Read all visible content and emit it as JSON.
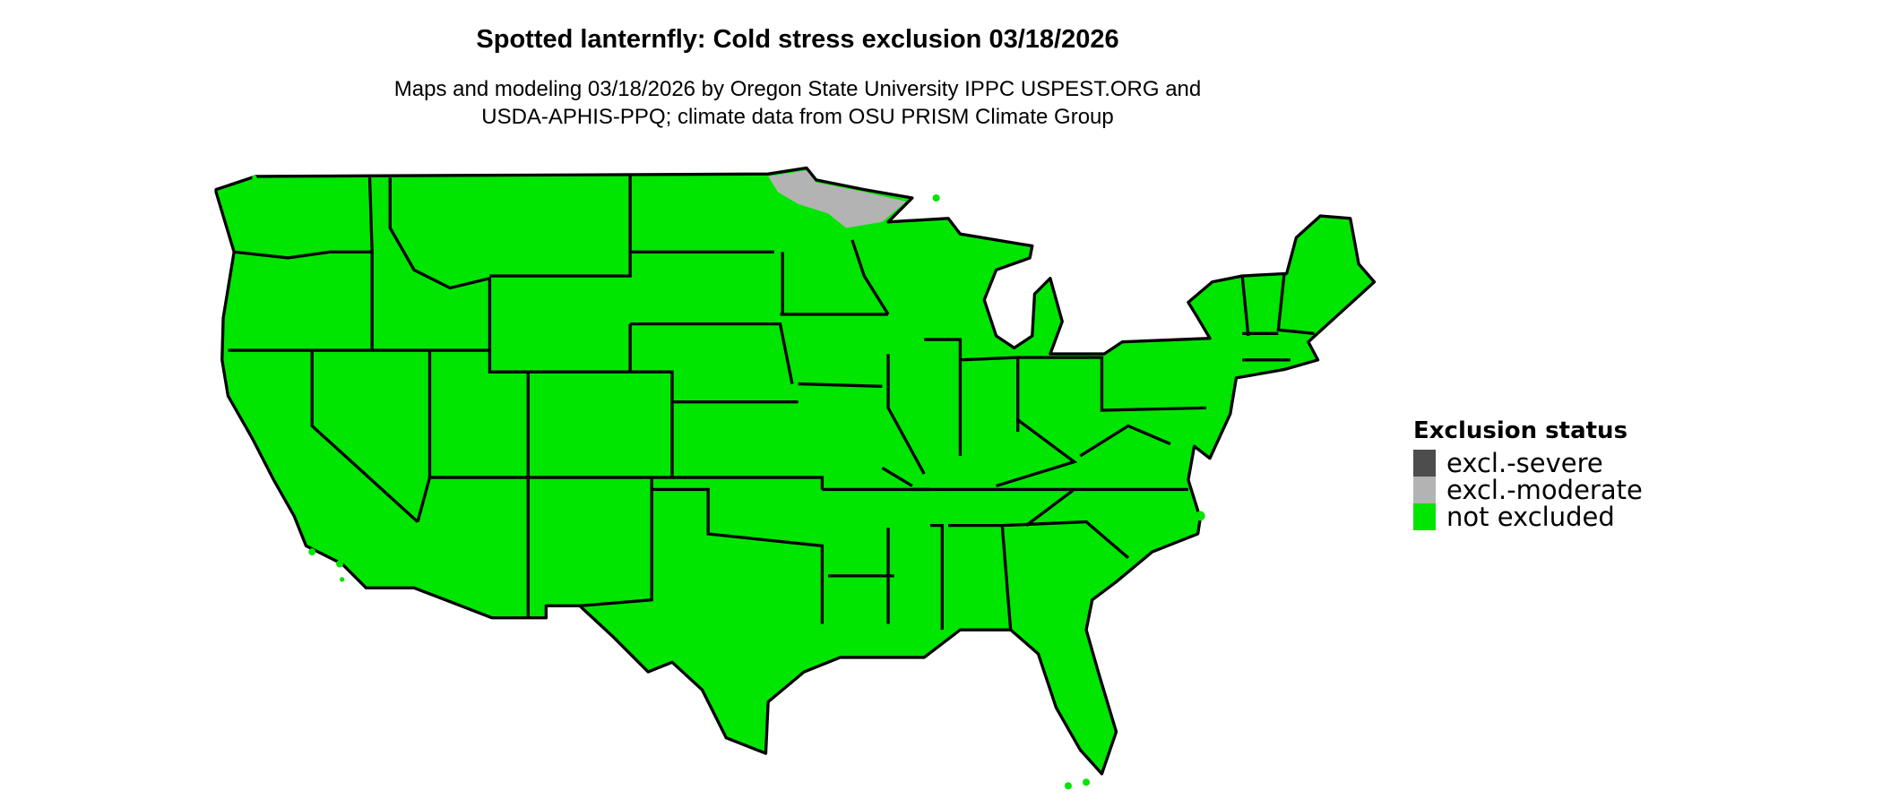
{
  "title": "Spotted lanternfly: Cold stress exclusion 03/18/2026",
  "subtitle_lines": [
    "Maps and modeling 03/18/2026 by Oregon State University IPPC USPEST.ORG and",
    "USDA-APHIS-PPQ; climate data from OSU PRISM Climate Group"
  ],
  "legend": {
    "title": "Exclusion status",
    "items": [
      {
        "label": "excl.-severe",
        "color": "#4d4d4d"
      },
      {
        "label": "excl.-moderate",
        "color": "#b3b3b3"
      },
      {
        "label": "not excluded",
        "color": "#00e600"
      }
    ]
  },
  "map": {
    "region": "contiguous United States",
    "dominant_status": "not excluded",
    "moderate_area": "northern Minnesota"
  }
}
